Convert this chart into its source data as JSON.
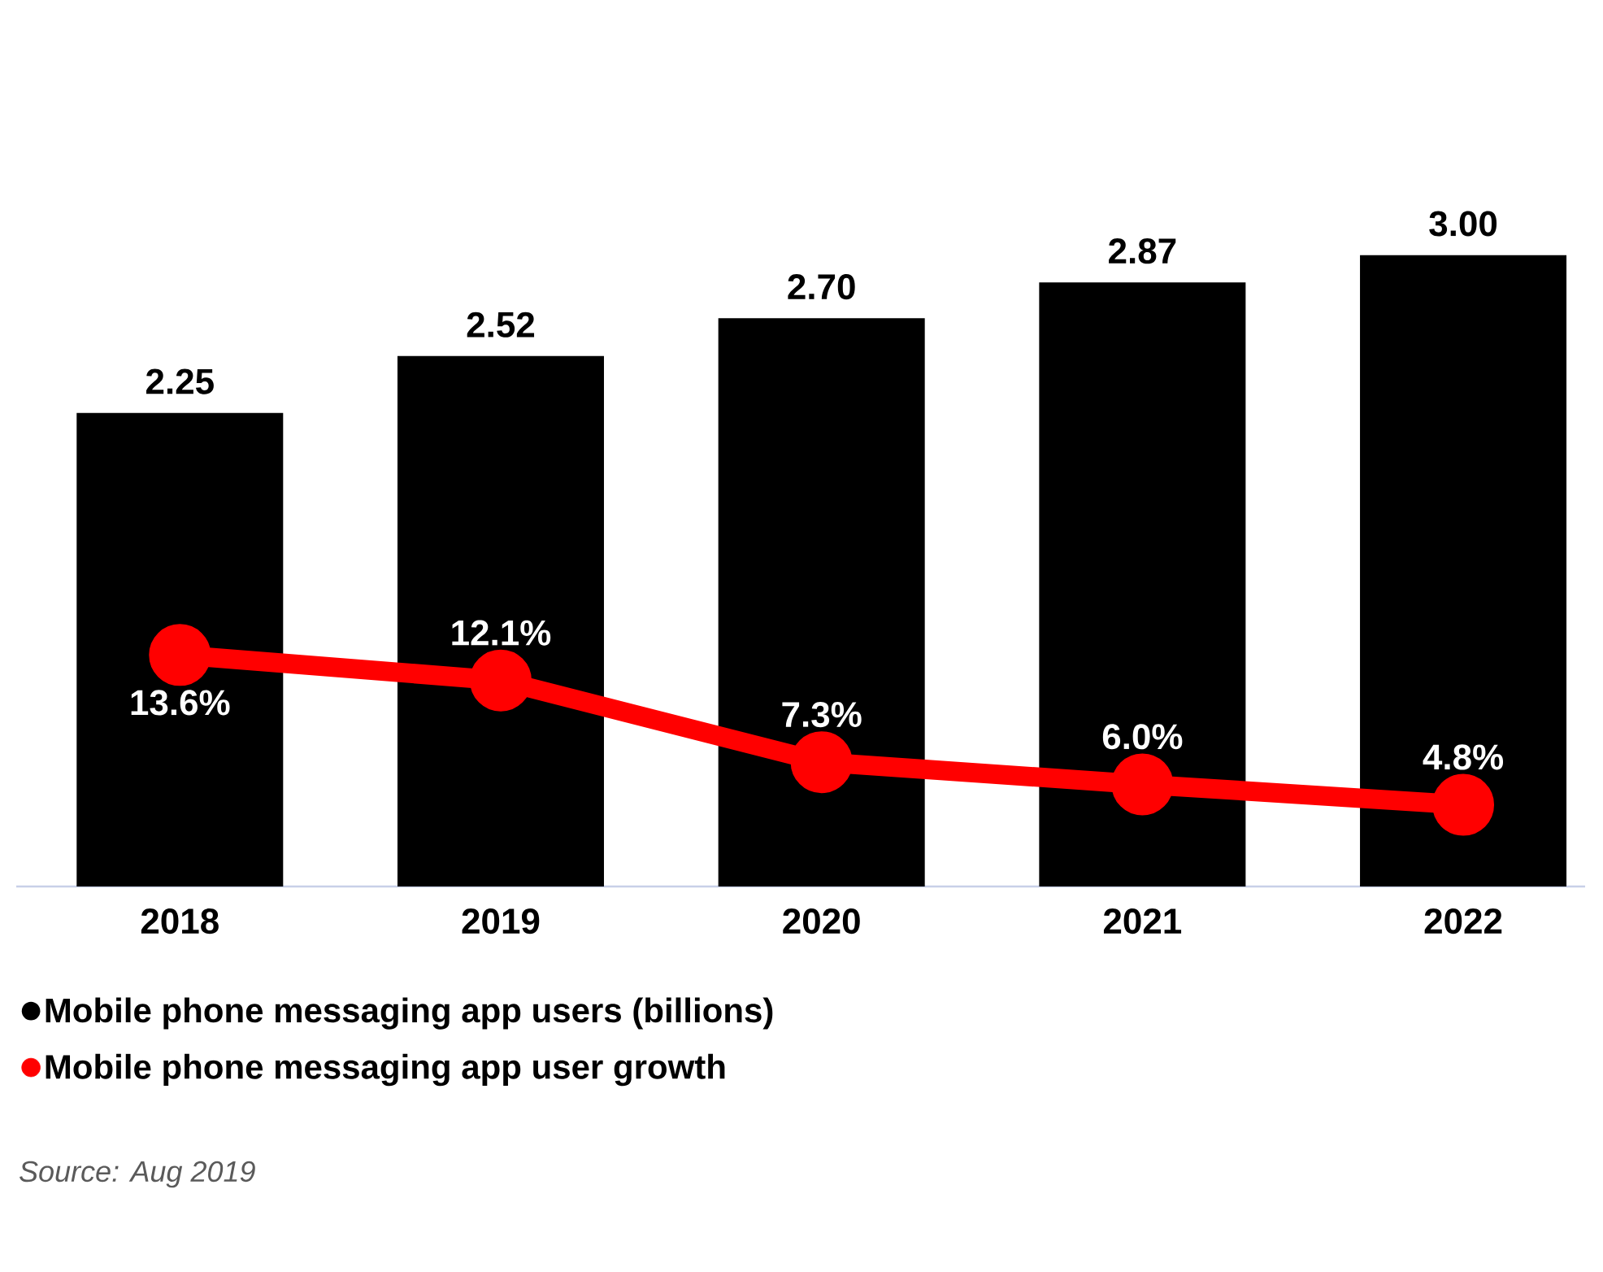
{
  "chart_data": {
    "type": "bar",
    "categories": [
      "2018",
      "2019",
      "2020",
      "2021",
      "2022"
    ],
    "series": [
      {
        "name": "Mobile phone messaging app users (billions)",
        "color": "#000000",
        "values": [
          2.25,
          2.52,
          2.7,
          2.87,
          3.0
        ],
        "value_labels": [
          "2.25",
          "2.52",
          "2.70",
          "2.87",
          "3.00"
        ]
      },
      {
        "name": "Mobile phone messaging app user growth",
        "type": "line",
        "axis": "y2",
        "color": "#ff0000",
        "marker": "circle",
        "values": [
          13.6,
          12.1,
          7.3,
          6.0,
          4.8
        ],
        "value_labels": [
          "13.6%",
          "12.1%",
          "7.3%",
          "6.0%",
          "4.8%"
        ]
      }
    ],
    "legend": "bottom",
    "tick_labels": "x",
    "annotations": [
      "Source: Aug 2019"
    ]
  }
}
